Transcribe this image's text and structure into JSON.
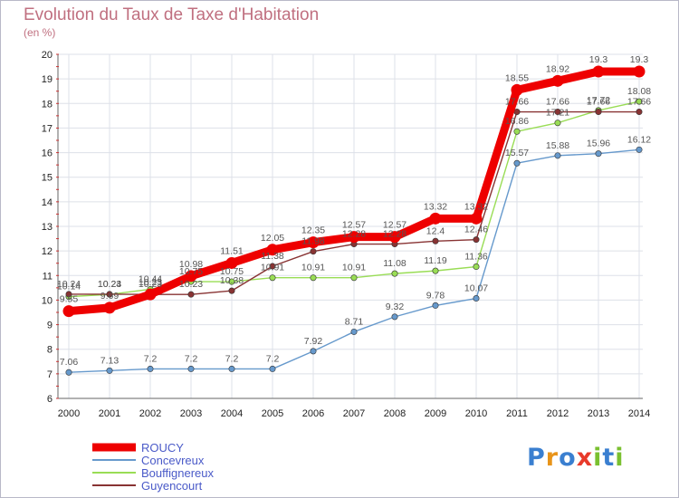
{
  "chart_data": {
    "type": "line",
    "title": "Evolution du Taux de Taxe d'Habitation",
    "subtitle": "(en %)",
    "x": [
      "2000",
      "2001",
      "2002",
      "2003",
      "2004",
      "2005",
      "2006",
      "2007",
      "2008",
      "2009",
      "2010",
      "2011",
      "2012",
      "2013",
      "2014"
    ],
    "ylim": [
      6,
      20
    ],
    "yticks": [
      6,
      7,
      8,
      9,
      10,
      11,
      12,
      13,
      14,
      15,
      16,
      17,
      18,
      19,
      20
    ],
    "grid": true,
    "legend_position": "bottom-left",
    "series": [
      {
        "name": "ROUCY",
        "color": "#ee0000",
        "values": [
          9.55,
          9.69,
          10.23,
          10.98,
          11.51,
          12.05,
          12.35,
          12.57,
          12.57,
          13.32,
          13.32,
          18.55,
          18.92,
          19.3,
          19.3
        ]
      },
      {
        "name": "Concevreux",
        "color": "#6699cc",
        "values": [
          7.06,
          7.13,
          7.2,
          7.2,
          7.2,
          7.2,
          7.92,
          8.71,
          9.32,
          9.78,
          10.07,
          15.57,
          15.88,
          15.96,
          16.12
        ]
      },
      {
        "name": "Bouffignereux",
        "color": "#99dd55",
        "values": [
          10.14,
          10.23,
          10.44,
          10.75,
          10.75,
          10.91,
          10.91,
          10.91,
          11.08,
          11.19,
          11.36,
          16.86,
          17.21,
          17.72,
          18.08
        ]
      },
      {
        "name": "Guyencourt",
        "color": "#883333",
        "values": [
          10.24,
          10.24,
          10.23,
          10.23,
          10.38,
          11.38,
          11.98,
          12.28,
          12.28,
          12.4,
          12.46,
          17.66,
          17.66,
          17.66,
          17.66
        ]
      }
    ]
  },
  "logo": {
    "text": "Proxiti"
  }
}
